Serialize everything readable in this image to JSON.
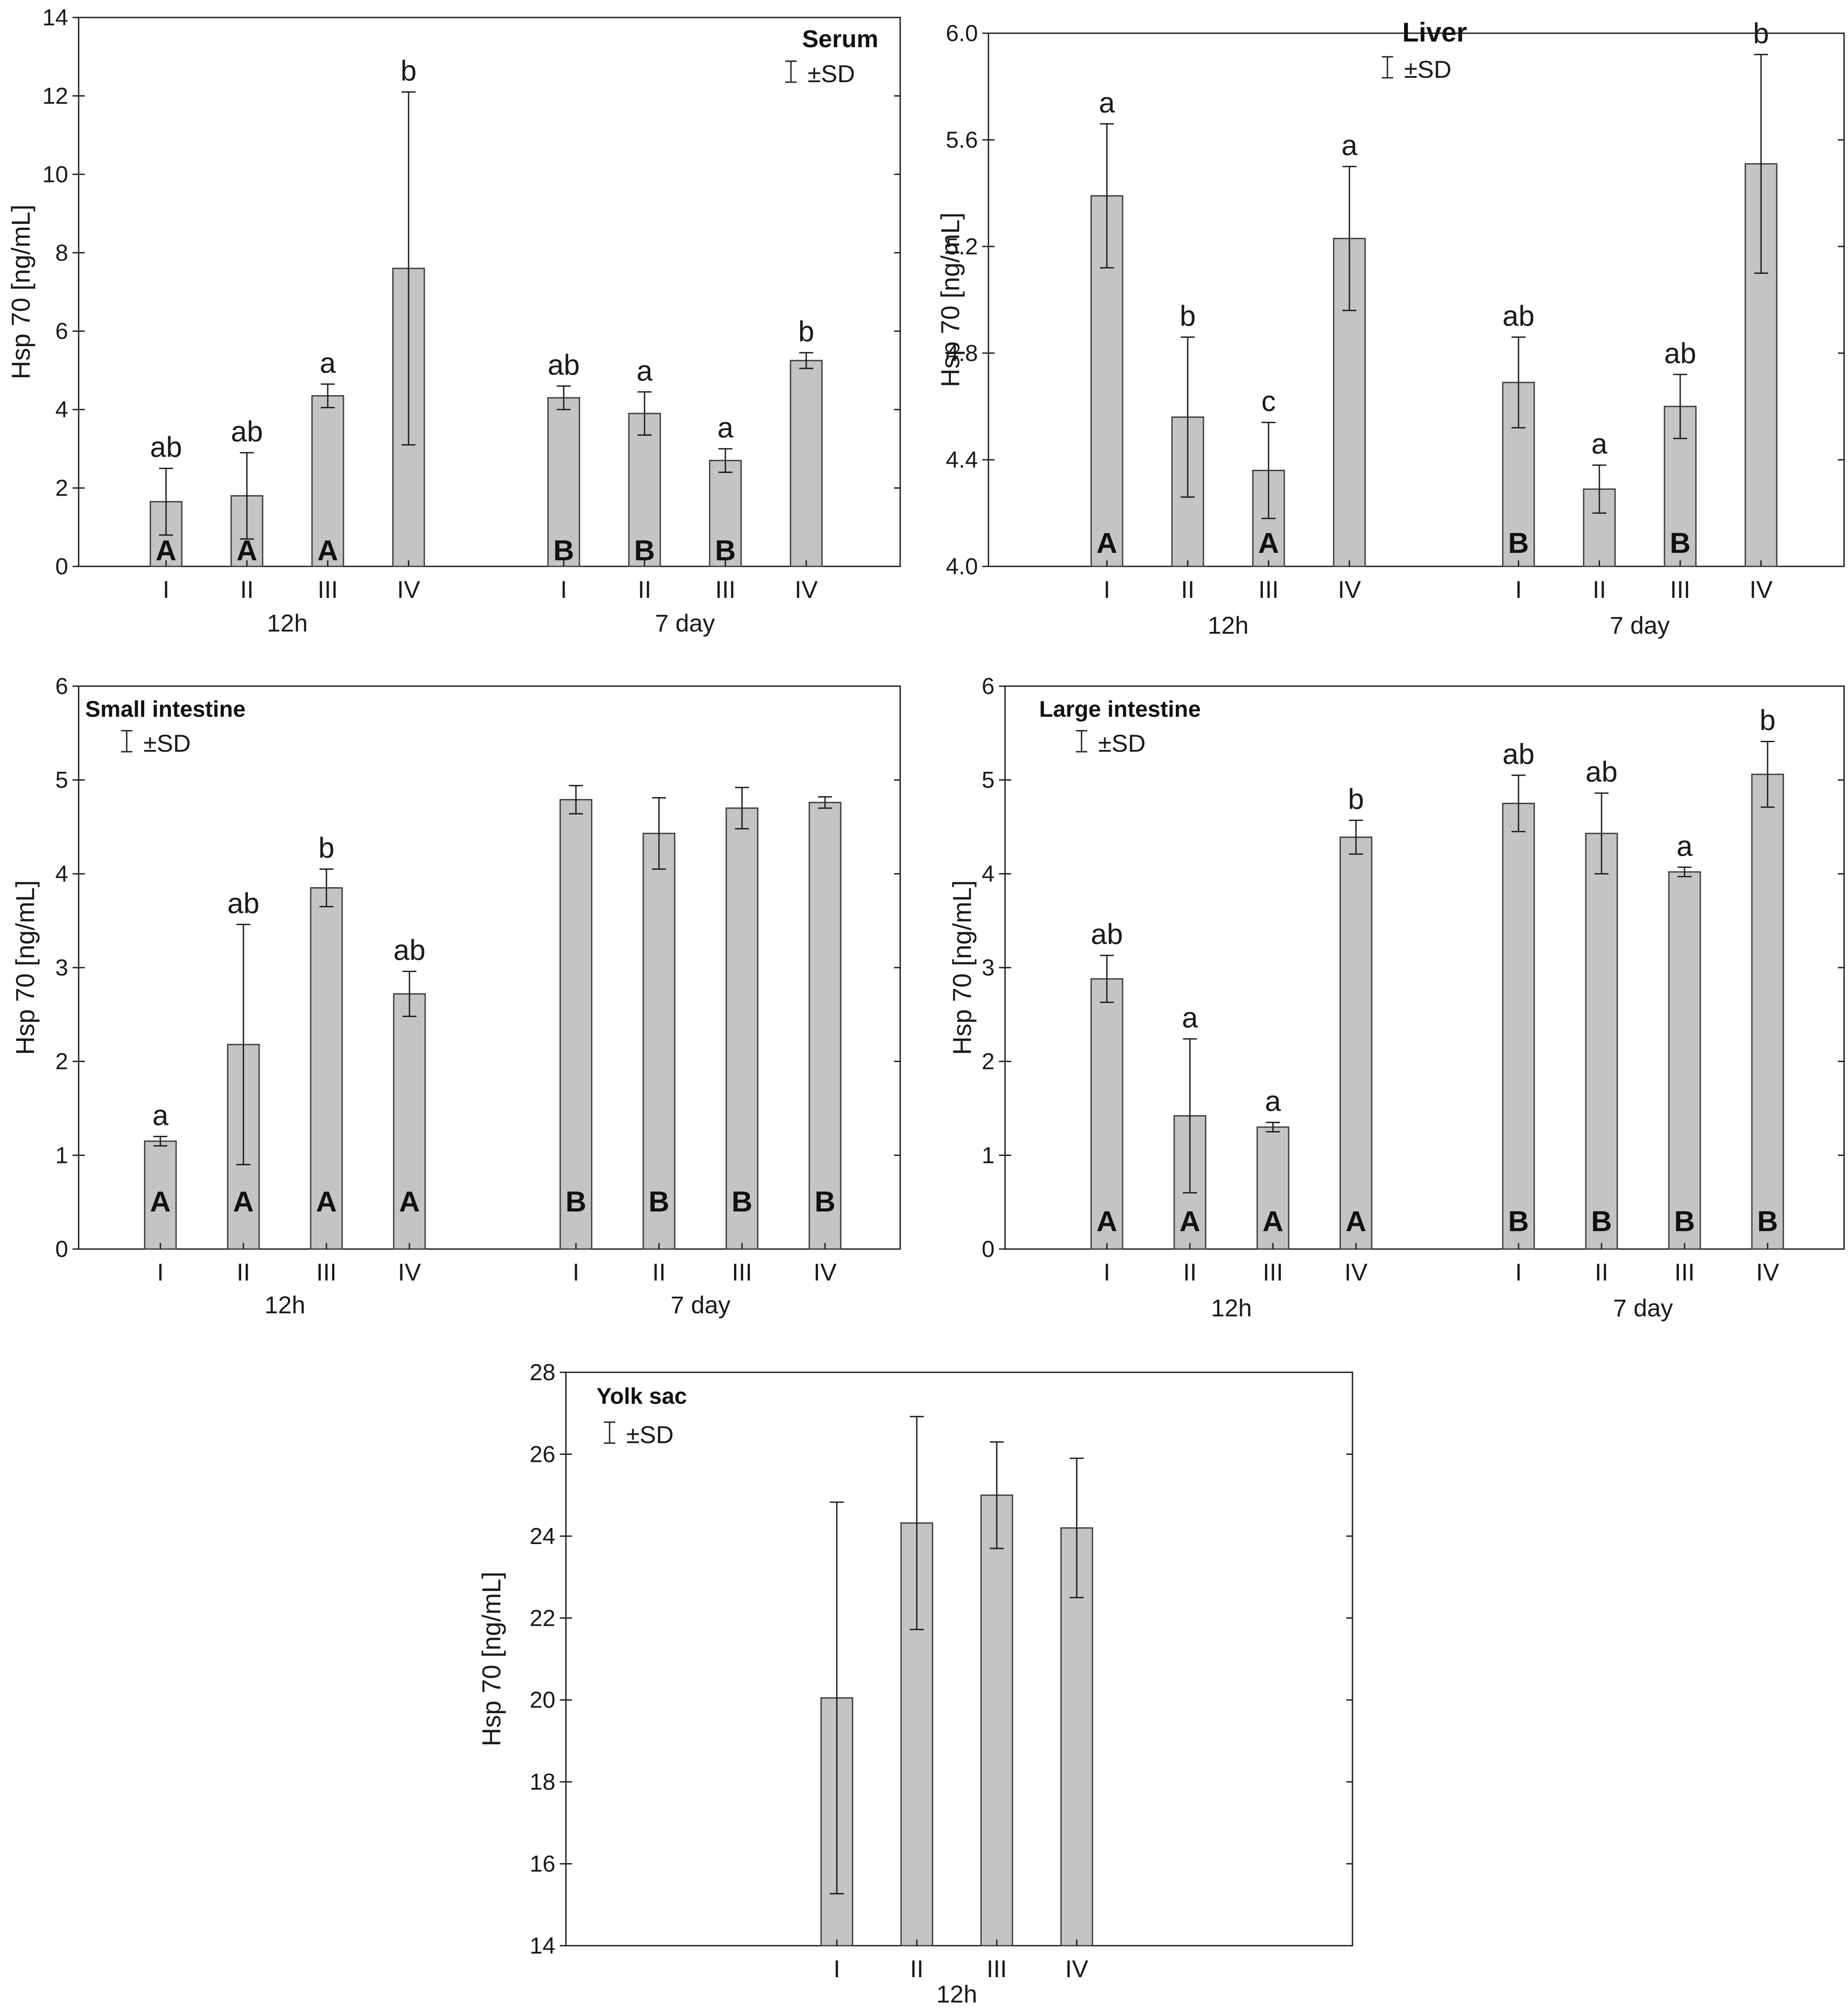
{
  "chart_data": [
    {
      "type": "bar",
      "title": "Serum",
      "legend": "±SD",
      "ylabel": "Hsp 70 [ng/mL]",
      "ylim": [
        0,
        14
      ],
      "yticks": [
        0,
        2,
        4,
        6,
        8,
        10,
        12,
        14
      ],
      "groups": [
        {
          "name": "12h",
          "categories": [
            "I",
            "II",
            "III",
            "IV"
          ],
          "values": [
            1.65,
            1.8,
            4.35,
            7.6
          ],
          "sd": [
            0.85,
            1.1,
            0.3,
            4.5
          ],
          "sig_lower": [
            "ab",
            "ab",
            "a",
            "b"
          ],
          "sig_upper": [
            "A",
            "A",
            "A",
            ""
          ]
        },
        {
          "name": "7 day",
          "categories": [
            "I",
            "II",
            "III",
            "IV"
          ],
          "values": [
            4.3,
            3.9,
            2.7,
            5.25
          ],
          "sd": [
            0.3,
            0.55,
            0.3,
            0.2
          ],
          "sig_lower": [
            "ab",
            "a",
            "a",
            "b"
          ],
          "sig_upper": [
            "B",
            "B",
            "B",
            ""
          ]
        }
      ]
    },
    {
      "type": "bar",
      "title": "Liver",
      "legend": "±SD",
      "ylabel": "Hsp 70 [ng/mL]",
      "ylim": [
        4.0,
        6.0
      ],
      "yticks": [
        "4.0",
        "4.4",
        "4.8",
        "5.2",
        "5.6",
        "6.0"
      ],
      "groups": [
        {
          "name": "12h",
          "categories": [
            "I",
            "II",
            "III",
            "IV"
          ],
          "values": [
            5.39,
            4.56,
            4.36,
            5.23
          ],
          "sd": [
            0.27,
            0.3,
            0.18,
            0.27
          ],
          "sig_lower": [
            "a",
            "b",
            "c",
            "a"
          ],
          "sig_upper": [
            "A",
            "",
            "A",
            ""
          ]
        },
        {
          "name": "7 day",
          "categories": [
            "I",
            "II",
            "III",
            "IV"
          ],
          "values": [
            4.69,
            4.29,
            4.6,
            5.51
          ],
          "sd": [
            0.17,
            0.09,
            0.12,
            0.41
          ],
          "sig_lower": [
            "ab",
            "a",
            "ab",
            "b"
          ],
          "sig_upper": [
            "B",
            "",
            "B",
            ""
          ]
        }
      ]
    },
    {
      "type": "bar",
      "title": "Small intestine",
      "legend": "±SD",
      "ylabel": "Hsp 70 [ng/mL]",
      "ylim": [
        0,
        6
      ],
      "yticks": [
        0,
        1,
        2,
        3,
        4,
        5,
        6
      ],
      "groups": [
        {
          "name": "12h",
          "categories": [
            "I",
            "II",
            "III",
            "IV"
          ],
          "values": [
            1.15,
            2.18,
            3.85,
            2.72
          ],
          "sd": [
            0.05,
            1.28,
            0.2,
            0.24
          ],
          "sig_lower": [
            "a",
            "ab",
            "b",
            "ab"
          ],
          "sig_upper": [
            "A",
            "A",
            "A",
            "A"
          ]
        },
        {
          "name": "7 day",
          "categories": [
            "I",
            "II",
            "III",
            "IV"
          ],
          "values": [
            4.79,
            4.43,
            4.7,
            4.76
          ],
          "sd": [
            0.15,
            0.38,
            0.22,
            0.06
          ],
          "sig_lower": [
            "",
            "",
            "",
            ""
          ],
          "sig_upper": [
            "B",
            "B",
            "B",
            "B"
          ]
        }
      ]
    },
    {
      "type": "bar",
      "title": "Large intestine",
      "legend": "±SD",
      "ylabel": "Hsp 70 [ng/mL]",
      "ylim": [
        0,
        6
      ],
      "yticks": [
        0,
        1,
        2,
        3,
        4,
        5,
        6
      ],
      "groups": [
        {
          "name": "12h",
          "categories": [
            "I",
            "II",
            "III",
            "IV"
          ],
          "values": [
            2.88,
            1.42,
            1.3,
            4.39
          ],
          "sd": [
            0.25,
            0.82,
            0.05,
            0.18
          ],
          "sig_lower": [
            "ab",
            "a",
            "a",
            "b"
          ],
          "sig_upper": [
            "A",
            "A",
            "A",
            "A"
          ]
        },
        {
          "name": "7 day",
          "categories": [
            "I",
            "II",
            "III",
            "IV"
          ],
          "values": [
            4.75,
            4.43,
            4.02,
            5.06
          ],
          "sd": [
            0.3,
            0.43,
            0.05,
            0.35
          ],
          "sig_lower": [
            "ab",
            "ab",
            "a",
            "b"
          ],
          "sig_upper": [
            "B",
            "B",
            "B",
            "B"
          ]
        }
      ]
    },
    {
      "type": "bar",
      "title": "Yolk sac",
      "legend": "±SD",
      "ylabel": "Hsp 70 [ng/mL]",
      "ylim": [
        14,
        28
      ],
      "yticks": [
        14,
        16,
        18,
        20,
        22,
        24,
        26,
        28
      ],
      "groups": [
        {
          "name": "12h",
          "categories": [
            "I",
            "II",
            "III",
            "IV"
          ],
          "values": [
            20.05,
            24.32,
            25.0,
            24.2
          ],
          "sd": [
            4.78,
            2.6,
            1.3,
            1.7
          ],
          "sig_lower": [
            "",
            "",
            "",
            ""
          ],
          "sig_upper": [
            "",
            "",
            "",
            ""
          ]
        }
      ]
    }
  ]
}
